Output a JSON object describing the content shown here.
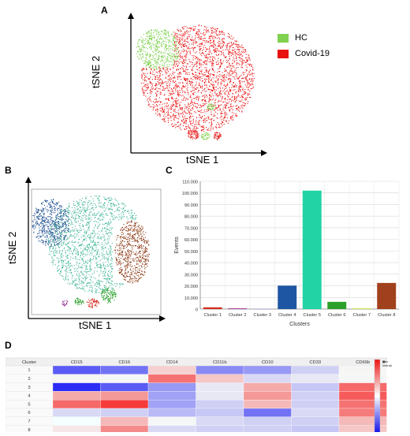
{
  "figure": {
    "panel_a_label": "A",
    "panel_b_label": "B",
    "panel_c_label": "C",
    "panel_d_label": "D"
  },
  "panel_a": {
    "xlabel": "tSNE 1",
    "ylabel": "tSNE 2",
    "legend": [
      {
        "label": "HC",
        "color": "#7fd14f"
      },
      {
        "label": "Covid-19",
        "color": "#e8110f"
      }
    ]
  },
  "panel_b": {
    "xlabel": "tSNE 1",
    "ylabel": "tSNE 2",
    "colors": {
      "cluster_teal": "#3fb597",
      "cluster_blue": "#1d4e8f",
      "cluster_brown": "#8c3a14",
      "cluster_green": "#2aa02a",
      "cluster_purple": "#8a1e8a"
    }
  },
  "chart_data": [
    {
      "type": "bar",
      "categories": [
        "Cluster 1",
        "Cluster 2",
        "Cluster 3",
        "Cluster 4",
        "Cluster 5",
        "Cluster 6",
        "Cluster 7",
        "Cluster 8"
      ],
      "values": [
        1500,
        600,
        200,
        20200,
        102000,
        6200,
        800,
        22500
      ],
      "colors": [
        "#d42b1e",
        "#a12b8f",
        "#9b9bd0",
        "#1f56a3",
        "#21d3a5",
        "#2aa02a",
        "#d8e85a",
        "#a1401c"
      ],
      "xlabel": "Clusters",
      "ylabel": "Events",
      "ylim": [
        0,
        110000
      ],
      "yticks": [
        "0",
        "10.000",
        "20.000",
        "30.000",
        "40.000",
        "50.000",
        "60.000",
        "70.000",
        "80.000",
        "90.000",
        "100.000",
        "110.000"
      ],
      "grid": true
    },
    {
      "type": "heatmap",
      "row_header": "Cluster",
      "columns": [
        "CD15",
        "CD16",
        "CD14",
        "CD11b",
        "CD10",
        "CD33",
        "CD66b"
      ],
      "rows": [
        "1",
        "2",
        "3",
        "4",
        "5",
        "6",
        "7",
        "8"
      ],
      "values": [
        [
          0.15,
          0.2,
          0.6,
          0.25,
          0.28,
          0.4,
          0.48
        ],
        [
          0.48,
          0.52,
          0.8,
          0.62,
          0.42,
          0.45,
          0.52
        ],
        [
          0.05,
          0.15,
          0.28,
          0.45,
          0.68,
          0.38,
          0.82
        ],
        [
          0.68,
          0.72,
          0.3,
          0.45,
          0.72,
          0.4,
          0.85
        ],
        [
          0.82,
          0.92,
          0.3,
          0.4,
          0.65,
          0.4,
          0.8
        ],
        [
          0.42,
          0.4,
          0.35,
          0.38,
          0.2,
          0.42,
          0.78
        ],
        [
          0.5,
          0.65,
          0.52,
          0.42,
          0.4,
          0.4,
          0.65
        ],
        [
          0.55,
          0.75,
          0.42,
          0.4,
          0.4,
          0.38,
          0.62
        ]
      ],
      "legend_max": "Max Intensity"
    }
  ]
}
